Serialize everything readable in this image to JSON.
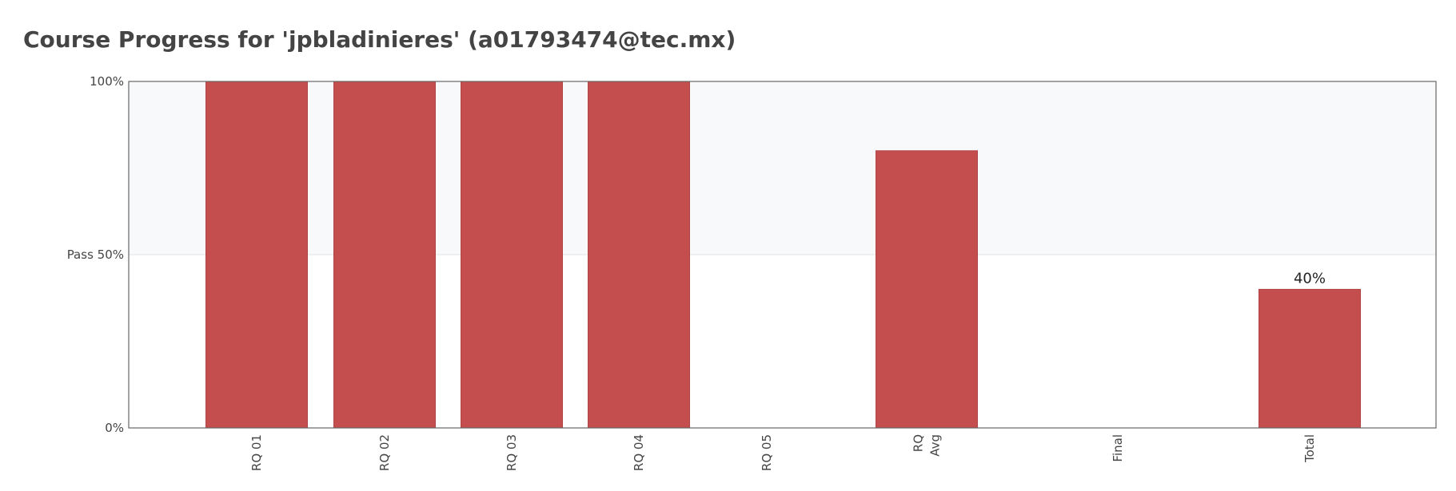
{
  "page": {
    "title": "Course Progress for 'jpbladinieres' (a01793474@tec.mx)"
  },
  "chart_data": {
    "type": "bar",
    "categories": [
      "RQ 01",
      "RQ 02",
      "RQ 03",
      "RQ 04",
      "RQ 05",
      "RQ\nAvg",
      "Final",
      "Total"
    ],
    "values": [
      100,
      100,
      100,
      100,
      0,
      80,
      0,
      40
    ],
    "data_labels": [
      "",
      "",
      "",
      "",
      "",
      "",
      "",
      "40%"
    ],
    "y_ticks": [
      {
        "value": 0,
        "label": "0%"
      },
      {
        "value": 50,
        "label": "Pass 50%"
      },
      {
        "value": 100,
        "label": "100%"
      }
    ],
    "ylim": [
      0,
      100
    ],
    "pass_threshold": 50,
    "grid": true,
    "colors": {
      "bar": "#c44e4e",
      "bar_edge": "#b04545",
      "pass_band": "#f8f9fa",
      "grid": "#e4e4e4",
      "frame": "#666666"
    }
  }
}
